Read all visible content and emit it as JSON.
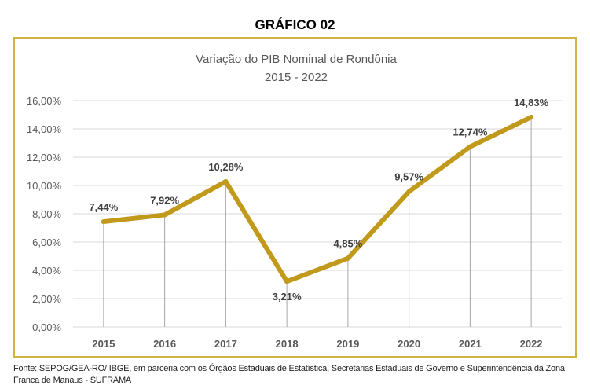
{
  "heading": "GRÁFICO 02",
  "source": "Fonte: SEPOG/GEA-RO/ IBGE, em parceria com os Órgãos Estaduais de Estatística, Secretarias Estaduais de Governo e Superintendência da Zona Franca de Manaus - SUFRAMA",
  "chart_data": {
    "type": "line",
    "title": "Variação do PIB Nominal de Rondônia",
    "subtitle": "2015 - 2022",
    "categories": [
      "2015",
      "2016",
      "2017",
      "2018",
      "2019",
      "2020",
      "2021",
      "2022"
    ],
    "values": [
      7.44,
      7.92,
      10.28,
      3.21,
      4.85,
      9.57,
      12.74,
      14.83
    ],
    "data_labels": [
      "7,44%",
      "7,92%",
      "10,28%",
      "3,21%",
      "4,85%",
      "9,57%",
      "12,74%",
      "14,83%"
    ],
    "ylim": [
      0,
      16
    ],
    "yticks": [
      "0,00%",
      "2,00%",
      "4,00%",
      "6,00%",
      "8,00%",
      "10,00%",
      "12,00%",
      "14,00%",
      "16,00%"
    ],
    "grid": true,
    "drop_lines": true,
    "legend": "none",
    "colors": {
      "line": "#c19a1b",
      "frame": "#cfb444",
      "grid": "#d9d9d9"
    }
  }
}
